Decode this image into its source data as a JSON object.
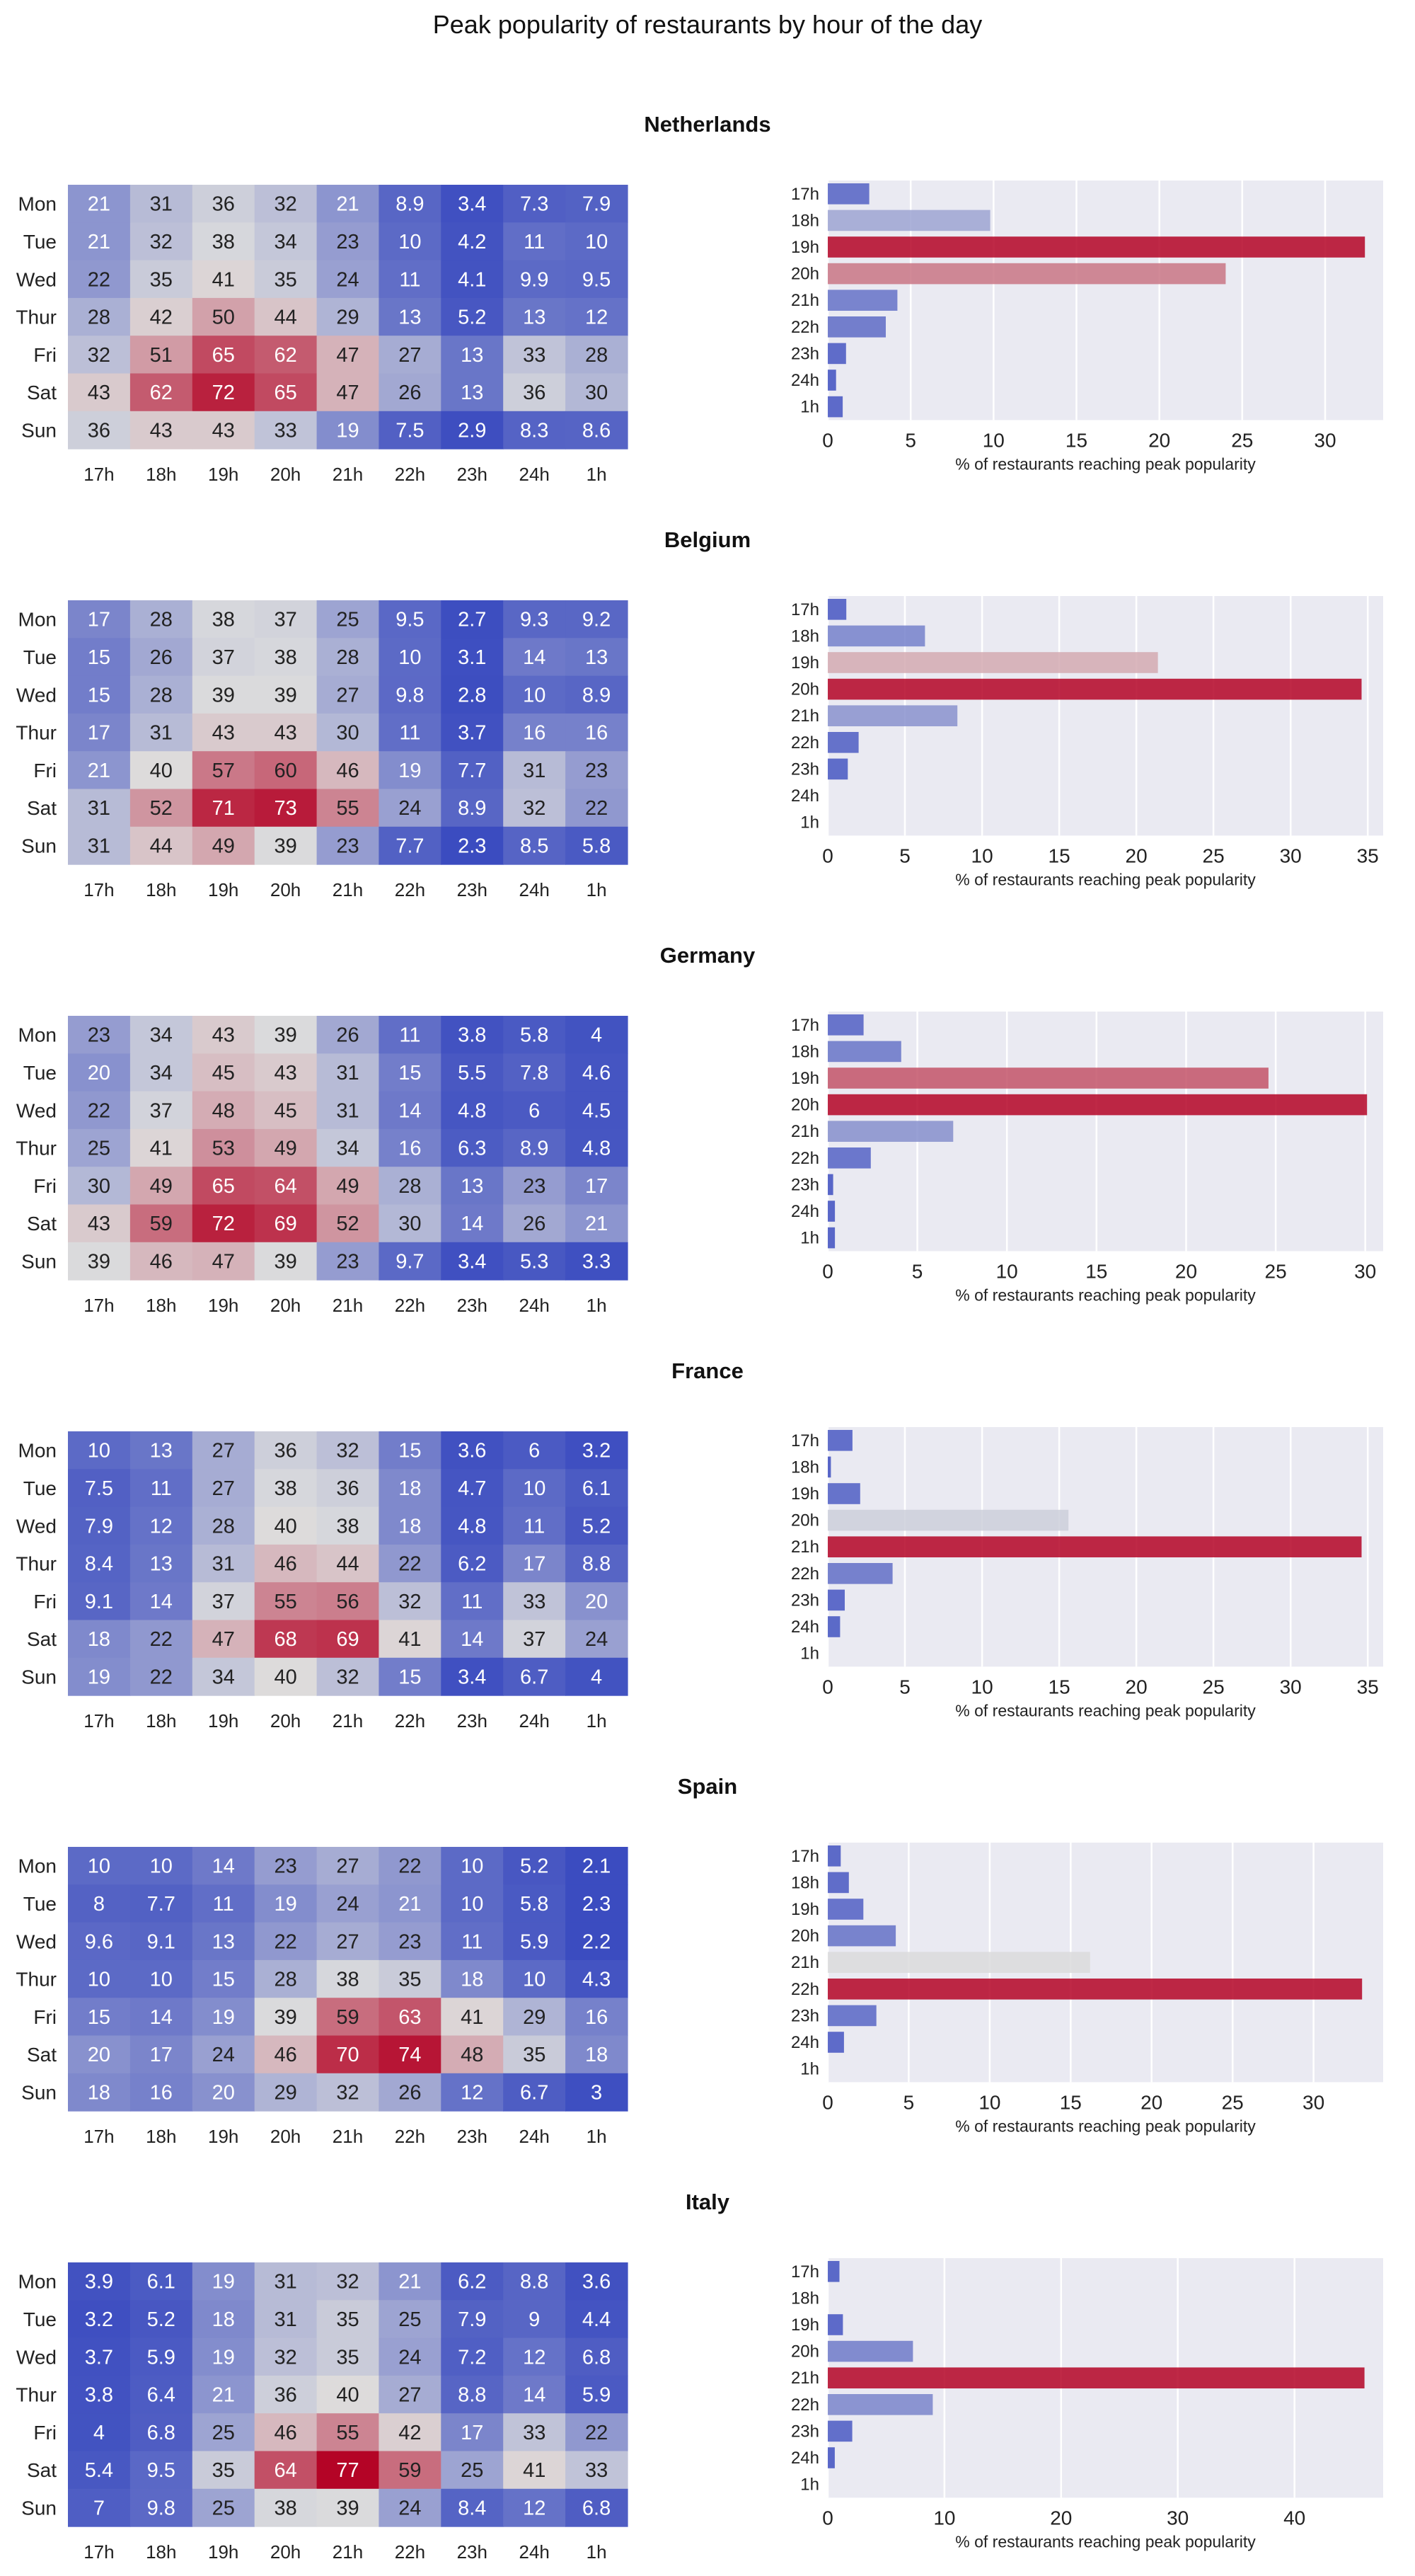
{
  "title": "Peak popularity of restaurants by hour of the day",
  "days": [
    "Mon",
    "Tue",
    "Wed",
    "Thur",
    "Fri",
    "Sat",
    "Sun"
  ],
  "hours": [
    "17h",
    "18h",
    "19h",
    "20h",
    "21h",
    "22h",
    "23h",
    "24h",
    "1h"
  ],
  "bar_xlabel": "% of restaurants reaching peak popularity",
  "colors": {
    "heat_low": "#3b4cc0",
    "heat_mid": "#dddddd",
    "heat_high": "#b40426",
    "plot_bg": "#eaeaf2",
    "grid": "#ffffff"
  },
  "chart_data": [
    {
      "type": "heatmap",
      "country": "Netherlands",
      "vmin": 2.3,
      "vmax": 77,
      "values": [
        [
          "21",
          "31",
          "36",
          "32",
          "21",
          "8.9",
          "3.4",
          "7.3",
          "7.9"
        ],
        [
          "21",
          "32",
          "38",
          "34",
          "23",
          "10",
          "4.2",
          "11",
          "10"
        ],
        [
          "22",
          "35",
          "41",
          "35",
          "24",
          "11",
          "4.1",
          "9.9",
          "9.5"
        ],
        [
          "28",
          "42",
          "50",
          "44",
          "29",
          "13",
          "5.2",
          "13",
          "12"
        ],
        [
          "32",
          "51",
          "65",
          "62",
          "47",
          "27",
          "13",
          "33",
          "28"
        ],
        [
          "43",
          "62",
          "72",
          "65",
          "47",
          "26",
          "13",
          "36",
          "30"
        ],
        [
          "36",
          "43",
          "43",
          "33",
          "19",
          "7.5",
          "2.9",
          "8.3",
          "8.6"
        ]
      ],
      "bar": {
        "type": "bar",
        "orientation": "horizontal",
        "values": [
          2.5,
          9.8,
          32.4,
          24.0,
          4.2,
          3.5,
          1.1,
          0.5,
          0.9
        ],
        "xlim": [
          0,
          33.5
        ],
        "ticks": [
          0,
          5,
          10,
          15,
          20,
          25,
          30
        ]
      }
    },
    {
      "type": "heatmap",
      "country": "Belgium",
      "vmin": 2.3,
      "vmax": 77,
      "values": [
        [
          "17",
          "28",
          "38",
          "37",
          "25",
          "9.5",
          "2.7",
          "9.3",
          "9.2"
        ],
        [
          "15",
          "26",
          "37",
          "38",
          "28",
          "10",
          "3.1",
          "14",
          "13"
        ],
        [
          "15",
          "28",
          "39",
          "39",
          "27",
          "9.8",
          "2.8",
          "10",
          "8.9"
        ],
        [
          "17",
          "31",
          "43",
          "43",
          "30",
          "11",
          "3.7",
          "16",
          "16"
        ],
        [
          "21",
          "40",
          "57",
          "60",
          "46",
          "19",
          "7.7",
          "31",
          "23"
        ],
        [
          "31",
          "52",
          "71",
          "73",
          "55",
          "24",
          "8.9",
          "32",
          "22"
        ],
        [
          "31",
          "44",
          "49",
          "39",
          "23",
          "7.7",
          "2.3",
          "8.5",
          "5.8"
        ]
      ],
      "bar": {
        "type": "bar",
        "orientation": "horizontal",
        "values": [
          1.2,
          6.3,
          21.4,
          34.6,
          8.4,
          2.0,
          1.3,
          0,
          0
        ],
        "xlim": [
          0,
          36
        ],
        "ticks": [
          0,
          5,
          10,
          15,
          20,
          25,
          30,
          35
        ]
      }
    },
    {
      "type": "heatmap",
      "country": "Germany",
      "vmin": 2.3,
      "vmax": 77,
      "values": [
        [
          "23",
          "34",
          "43",
          "39",
          "26",
          "11",
          "3.8",
          "5.8",
          "4"
        ],
        [
          "20",
          "34",
          "45",
          "43",
          "31",
          "15",
          "5.5",
          "7.8",
          "4.6"
        ],
        [
          "22",
          "37",
          "48",
          "45",
          "31",
          "14",
          "4.8",
          "6",
          "4.5"
        ],
        [
          "25",
          "41",
          "53",
          "49",
          "34",
          "16",
          "6.3",
          "8.9",
          "4.8"
        ],
        [
          "30",
          "49",
          "65",
          "64",
          "49",
          "28",
          "13",
          "23",
          "17"
        ],
        [
          "43",
          "59",
          "72",
          "69",
          "52",
          "30",
          "14",
          "26",
          "21"
        ],
        [
          "39",
          "46",
          "47",
          "39",
          "23",
          "9.7",
          "3.4",
          "5.3",
          "3.3"
        ]
      ],
      "bar": {
        "type": "bar",
        "orientation": "horizontal",
        "values": [
          2.0,
          4.1,
          24.6,
          30.1,
          7.0,
          2.4,
          0.3,
          0.4,
          0.4
        ],
        "xlim": [
          0,
          31
        ],
        "ticks": [
          0,
          5,
          10,
          15,
          20,
          25,
          30
        ]
      }
    },
    {
      "type": "heatmap",
      "country": "France",
      "vmin": 2.3,
      "vmax": 77,
      "values": [
        [
          "10",
          "13",
          "27",
          "36",
          "32",
          "15",
          "3.6",
          "6",
          "3.2"
        ],
        [
          "7.5",
          "11",
          "27",
          "38",
          "36",
          "18",
          "4.7",
          "10",
          "6.1"
        ],
        [
          "7.9",
          "12",
          "28",
          "40",
          "38",
          "18",
          "4.8",
          "11",
          "5.2"
        ],
        [
          "8.4",
          "13",
          "31",
          "46",
          "44",
          "22",
          "6.2",
          "17",
          "8.8"
        ],
        [
          "9.1",
          "14",
          "37",
          "55",
          "56",
          "32",
          "11",
          "33",
          "20"
        ],
        [
          "18",
          "22",
          "47",
          "68",
          "69",
          "41",
          "14",
          "37",
          "24"
        ],
        [
          "19",
          "22",
          "34",
          "40",
          "32",
          "15",
          "3.4",
          "6.7",
          "4"
        ]
      ],
      "bar": {
        "type": "bar",
        "orientation": "horizontal",
        "values": [
          1.6,
          0.2,
          2.1,
          15.6,
          34.6,
          4.2,
          1.1,
          0.8,
          0
        ],
        "xlim": [
          0,
          36
        ],
        "ticks": [
          0,
          5,
          10,
          15,
          20,
          25,
          30,
          35
        ]
      }
    },
    {
      "type": "heatmap",
      "country": "Spain",
      "vmin": 2.3,
      "vmax": 77,
      "values": [
        [
          "10",
          "10",
          "14",
          "23",
          "27",
          "22",
          "10",
          "5.2",
          "2.1"
        ],
        [
          "8",
          "7.7",
          "11",
          "19",
          "24",
          "21",
          "10",
          "5.8",
          "2.3"
        ],
        [
          "9.6",
          "9.1",
          "13",
          "22",
          "27",
          "23",
          "11",
          "5.9",
          "2.2"
        ],
        [
          "10",
          "10",
          "15",
          "28",
          "38",
          "35",
          "18",
          "10",
          "4.3"
        ],
        [
          "15",
          "14",
          "19",
          "39",
          "59",
          "63",
          "41",
          "29",
          "16"
        ],
        [
          "20",
          "17",
          "24",
          "46",
          "70",
          "74",
          "48",
          "35",
          "18"
        ],
        [
          "18",
          "16",
          "20",
          "29",
          "32",
          "26",
          "12",
          "6.7",
          "3"
        ]
      ],
      "bar": {
        "type": "bar",
        "orientation": "horizontal",
        "values": [
          0.8,
          1.3,
          2.2,
          4.2,
          16.2,
          33.0,
          3.0,
          1.0,
          0
        ],
        "xlim": [
          0,
          34.3
        ],
        "ticks": [
          0,
          5,
          10,
          15,
          20,
          25,
          30
        ]
      }
    },
    {
      "type": "heatmap",
      "country": "Italy",
      "vmin": 2.3,
      "vmax": 77,
      "values": [
        [
          "3.9",
          "6.1",
          "19",
          "31",
          "32",
          "21",
          "6.2",
          "8.8",
          "3.6"
        ],
        [
          "3.2",
          "5.2",
          "18",
          "31",
          "35",
          "25",
          "7.9",
          "9",
          "4.4"
        ],
        [
          "3.7",
          "5.9",
          "19",
          "32",
          "35",
          "24",
          "7.2",
          "12",
          "6.8"
        ],
        [
          "3.8",
          "6.4",
          "21",
          "36",
          "40",
          "27",
          "8.8",
          "14",
          "5.9"
        ],
        [
          "4",
          "6.8",
          "25",
          "46",
          "55",
          "42",
          "17",
          "33",
          "22"
        ],
        [
          "5.4",
          "9.5",
          "35",
          "64",
          "77",
          "59",
          "25",
          "41",
          "33"
        ],
        [
          "7",
          "9.8",
          "25",
          "38",
          "39",
          "24",
          "8.4",
          "12",
          "6.8"
        ]
      ],
      "bar": {
        "type": "bar",
        "orientation": "horizontal",
        "values": [
          1.0,
          0,
          1.3,
          7.3,
          46.0,
          9.0,
          2.1,
          0.6,
          0
        ],
        "xlim": [
          0,
          47.6
        ],
        "ticks": [
          0,
          10,
          20,
          30,
          40
        ]
      }
    }
  ]
}
